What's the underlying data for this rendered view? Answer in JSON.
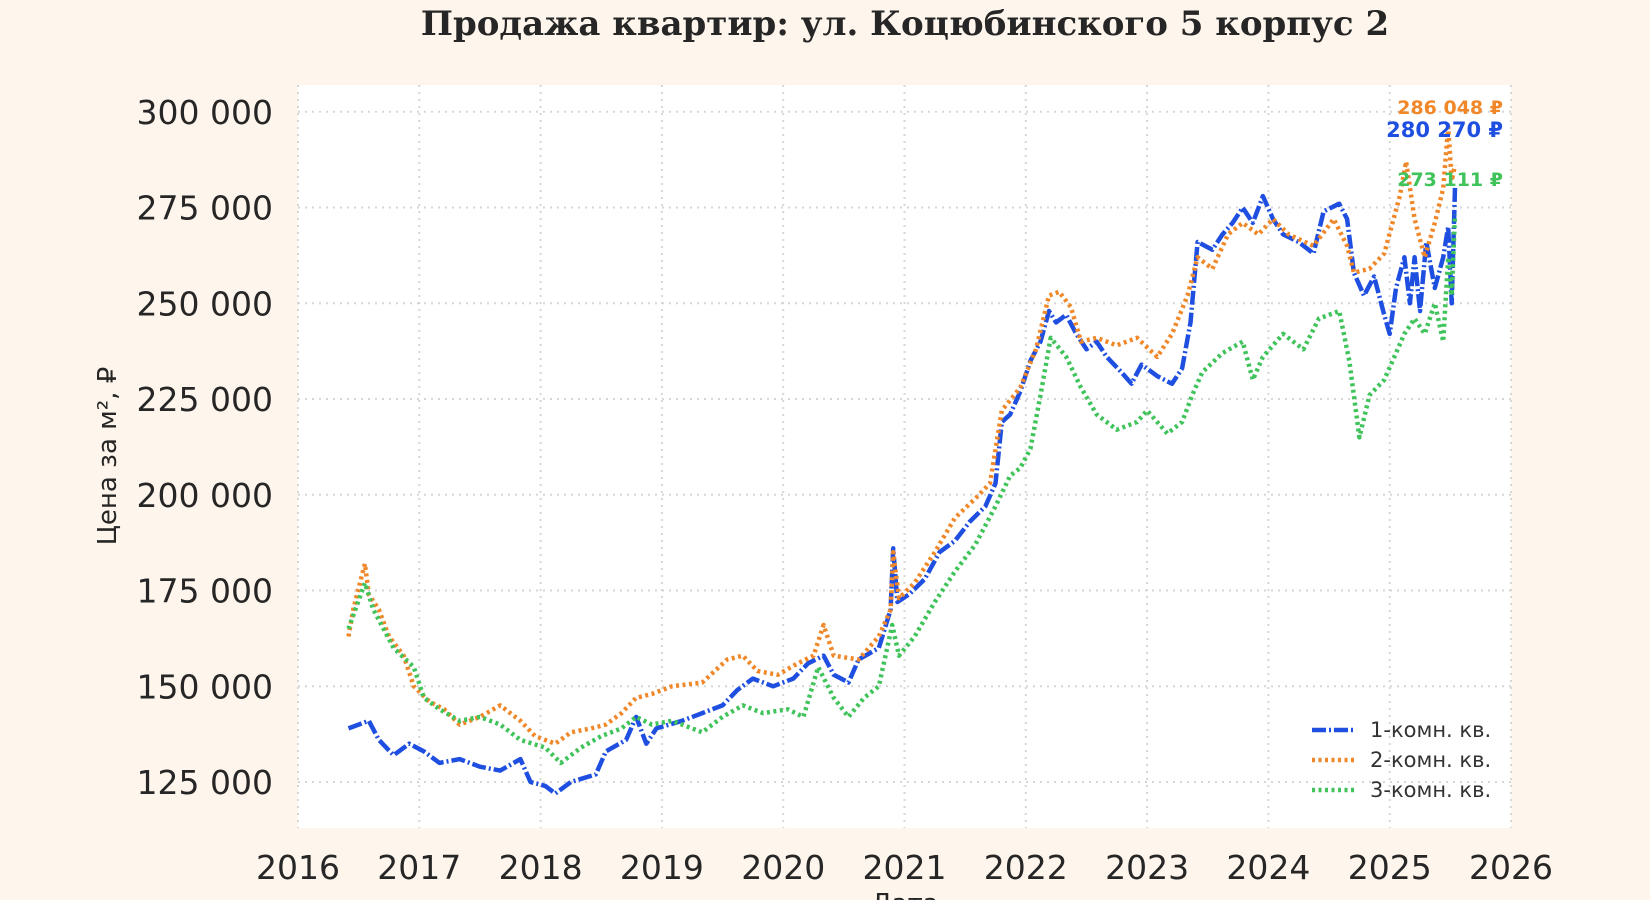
{
  "chart_data": {
    "type": "line",
    "title": "Продажа квартир: ул. Коцюбинского 5 корпус 2",
    "xlabel": "Дата",
    "ylabel": "Цена за м², ₽",
    "xlim": [
      "2016-01-01",
      "2026-01-01"
    ],
    "ylim": [
      113000,
      307000
    ],
    "x_ticks": [
      "2016",
      "2017",
      "2018",
      "2019",
      "2020",
      "2021",
      "2022",
      "2023",
      "2024",
      "2025",
      "2026"
    ],
    "y_ticks": [
      "125 000",
      "150 000",
      "175 000",
      "200 000",
      "225 000",
      "250 000",
      "275 000",
      "300 000"
    ],
    "y_tick_values": [
      125000,
      150000,
      175000,
      200000,
      225000,
      250000,
      275000,
      300000
    ],
    "grid": true,
    "legend_position": "bottom-right",
    "series": [
      {
        "name": "1-комн. кв.",
        "color": "#1f4fe0",
        "style": "dashdot",
        "end_label": "280 270 ₽",
        "points": [
          [
            "2016-06-01",
            139000
          ],
          [
            "2016-07-01",
            140000
          ],
          [
            "2016-08-01",
            141000
          ],
          [
            "2016-09-01",
            136000
          ],
          [
            "2016-10-15",
            132000
          ],
          [
            "2016-12-01",
            135000
          ],
          [
            "2017-01-15",
            133000
          ],
          [
            "2017-03-01",
            130000
          ],
          [
            "2017-05-01",
            131000
          ],
          [
            "2017-07-01",
            129000
          ],
          [
            "2017-09-01",
            128000
          ],
          [
            "2017-11-01",
            131000
          ],
          [
            "2017-12-01",
            125000
          ],
          [
            "2018-01-15",
            124000
          ],
          [
            "2018-02-15",
            122000
          ],
          [
            "2018-04-01",
            125000
          ],
          [
            "2018-06-15",
            127000
          ],
          [
            "2018-07-15",
            133000
          ],
          [
            "2018-09-15",
            136000
          ],
          [
            "2018-10-15",
            142000
          ],
          [
            "2018-11-15",
            135000
          ],
          [
            "2018-12-15",
            139000
          ],
          [
            "2019-03-01",
            141000
          ],
          [
            "2019-05-01",
            143000
          ],
          [
            "2019-07-01",
            145000
          ],
          [
            "2019-08-15",
            149000
          ],
          [
            "2019-10-01",
            152000
          ],
          [
            "2019-12-01",
            150000
          ],
          [
            "2020-02-01",
            152000
          ],
          [
            "2020-03-15",
            156000
          ],
          [
            "2020-05-01",
            158000
          ],
          [
            "2020-06-01",
            153000
          ],
          [
            "2020-07-15",
            151000
          ],
          [
            "2020-08-15",
            157000
          ],
          [
            "2020-10-15",
            160000
          ],
          [
            "2020-11-20",
            170000
          ],
          [
            "2020-11-28",
            186000
          ],
          [
            "2020-12-10",
            172000
          ],
          [
            "2021-01-15",
            174000
          ],
          [
            "2021-03-01",
            178000
          ],
          [
            "2021-04-15",
            185000
          ],
          [
            "2021-06-01",
            188000
          ],
          [
            "2021-07-15",
            193000
          ],
          [
            "2021-09-01",
            197000
          ],
          [
            "2021-10-01",
            203000
          ],
          [
            "2021-10-20",
            219000
          ],
          [
            "2021-11-15",
            221000
          ],
          [
            "2021-12-15",
            227000
          ],
          [
            "2022-01-15",
            235000
          ],
          [
            "2022-02-15",
            240000
          ],
          [
            "2022-03-10",
            248000
          ],
          [
            "2022-04-01",
            245000
          ],
          [
            "2022-05-01",
            247000
          ],
          [
            "2022-06-01",
            242000
          ],
          [
            "2022-07-01",
            238000
          ],
          [
            "2022-08-01",
            240000
          ],
          [
            "2022-09-01",
            236000
          ],
          [
            "2022-10-15",
            232000
          ],
          [
            "2022-11-15",
            229000
          ],
          [
            "2022-12-15",
            234000
          ],
          [
            "2023-02-01",
            231000
          ],
          [
            "2023-03-15",
            229000
          ],
          [
            "2023-04-15",
            233000
          ],
          [
            "2023-05-10",
            245000
          ],
          [
            "2023-06-01",
            266000
          ],
          [
            "2023-07-15",
            264000
          ],
          [
            "2023-08-15",
            268000
          ],
          [
            "2023-09-15",
            271000
          ],
          [
            "2023-10-15",
            275000
          ],
          [
            "2023-11-15",
            271000
          ],
          [
            "2023-12-15",
            278000
          ],
          [
            "2024-01-15",
            272000
          ],
          [
            "2024-02-15",
            268000
          ],
          [
            "2024-04-01",
            266000
          ],
          [
            "2024-05-15",
            263000
          ],
          [
            "2024-06-15",
            274000
          ],
          [
            "2024-08-01",
            276000
          ],
          [
            "2024-08-25",
            272000
          ],
          [
            "2024-09-15",
            258000
          ],
          [
            "2024-10-15",
            252000
          ],
          [
            "2024-11-15",
            257000
          ],
          [
            "2024-12-15",
            247000
          ],
          [
            "2025-01-01",
            242000
          ],
          [
            "2025-01-20",
            254000
          ],
          [
            "2025-02-15",
            262000
          ],
          [
            "2025-03-01",
            250000
          ],
          [
            "2025-03-15",
            262000
          ],
          [
            "2025-04-01",
            248000
          ],
          [
            "2025-04-20",
            266000
          ],
          [
            "2025-05-15",
            254000
          ],
          [
            "2025-06-10",
            262000
          ],
          [
            "2025-06-25",
            270000
          ],
          [
            "2025-07-05",
            250000
          ],
          [
            "2025-07-15",
            280270
          ]
        ]
      },
      {
        "name": "2-комн. кв.",
        "color": "#f0882a",
        "style": "dotted",
        "end_label": "286 048 ₽",
        "points": [
          [
            "2016-06-01",
            163000
          ],
          [
            "2016-06-15",
            170000
          ],
          [
            "2016-07-20",
            182000
          ],
          [
            "2016-08-01",
            174000
          ],
          [
            "2016-09-01",
            170000
          ],
          [
            "2016-10-01",
            163000
          ],
          [
            "2016-11-15",
            158000
          ],
          [
            "2016-12-15",
            150000
          ],
          [
            "2017-02-01",
            146000
          ],
          [
            "2017-03-15",
            144000
          ],
          [
            "2017-05-01",
            140000
          ],
          [
            "2017-07-01",
            142000
          ],
          [
            "2017-09-01",
            145000
          ],
          [
            "2017-11-01",
            141000
          ],
          [
            "2017-12-15",
            137000
          ],
          [
            "2018-02-15",
            135000
          ],
          [
            "2018-04-01",
            138000
          ],
          [
            "2018-06-01",
            139000
          ],
          [
            "2018-07-15",
            140000
          ],
          [
            "2018-09-01",
            143000
          ],
          [
            "2018-10-15",
            147000
          ],
          [
            "2018-12-01",
            148000
          ],
          [
            "2019-02-01",
            150000
          ],
          [
            "2019-05-01",
            151000
          ],
          [
            "2019-07-15",
            157000
          ],
          [
            "2019-09-01",
            158000
          ],
          [
            "2019-10-15",
            154000
          ],
          [
            "2019-12-15",
            153000
          ],
          [
            "2020-02-15",
            156000
          ],
          [
            "2020-04-01",
            158000
          ],
          [
            "2020-05-01",
            166000
          ],
          [
            "2020-06-01",
            158000
          ],
          [
            "2020-08-15",
            157000
          ],
          [
            "2020-10-15",
            163000
          ],
          [
            "2020-11-20",
            170000
          ],
          [
            "2020-11-28",
            185000
          ],
          [
            "2020-12-15",
            173000
          ],
          [
            "2021-02-01",
            177000
          ],
          [
            "2021-04-01",
            185000
          ],
          [
            "2021-06-01",
            194000
          ],
          [
            "2021-08-01",
            199000
          ],
          [
            "2021-09-15",
            203000
          ],
          [
            "2021-10-20",
            222000
          ],
          [
            "2021-12-15",
            228000
          ],
          [
            "2022-02-01",
            238000
          ],
          [
            "2022-03-10",
            252000
          ],
          [
            "2022-04-10",
            253000
          ],
          [
            "2022-05-15",
            249000
          ],
          [
            "2022-06-15",
            240000
          ],
          [
            "2022-08-01",
            241000
          ],
          [
            "2022-10-01",
            239000
          ],
          [
            "2022-12-01",
            241000
          ],
          [
            "2023-02-01",
            236000
          ],
          [
            "2023-03-15",
            242000
          ],
          [
            "2023-05-01",
            252000
          ],
          [
            "2023-06-01",
            262000
          ],
          [
            "2023-07-15",
            259000
          ],
          [
            "2023-09-01",
            268000
          ],
          [
            "2023-10-15",
            271000
          ],
          [
            "2023-12-01",
            268000
          ],
          [
            "2024-01-15",
            272000
          ],
          [
            "2024-03-01",
            268000
          ],
          [
            "2024-05-15",
            265000
          ],
          [
            "2024-07-15",
            272000
          ],
          [
            "2024-08-25",
            265000
          ],
          [
            "2024-09-15",
            258000
          ],
          [
            "2024-11-01",
            259000
          ],
          [
            "2024-12-15",
            263000
          ],
          [
            "2025-02-01",
            278000
          ],
          [
            "2025-02-20",
            287000
          ],
          [
            "2025-03-15",
            272000
          ],
          [
            "2025-04-15",
            262000
          ],
          [
            "2025-05-15",
            271000
          ],
          [
            "2025-06-10",
            280000
          ],
          [
            "2025-06-25",
            296000
          ],
          [
            "2025-07-05",
            282000
          ],
          [
            "2025-07-15",
            286048
          ]
        ]
      },
      {
        "name": "3-комн. кв.",
        "color": "#3fc35a",
        "style": "dotted",
        "end_label": "273 111 ₽",
        "points": [
          [
            "2016-06-01",
            165000
          ],
          [
            "2016-07-20",
            177000
          ],
          [
            "2016-08-15",
            170000
          ],
          [
            "2016-09-15",
            165000
          ],
          [
            "2016-10-15",
            160000
          ],
          [
            "2016-12-15",
            155000
          ],
          [
            "2017-01-15",
            147000
          ],
          [
            "2017-03-01",
            144000
          ],
          [
            "2017-05-01",
            141000
          ],
          [
            "2017-07-01",
            142000
          ],
          [
            "2017-09-01",
            140000
          ],
          [
            "2017-11-01",
            136000
          ],
          [
            "2018-01-15",
            134000
          ],
          [
            "2018-03-01",
            130000
          ],
          [
            "2018-05-01",
            134000
          ],
          [
            "2018-07-01",
            137000
          ],
          [
            "2018-09-01",
            139000
          ],
          [
            "2018-10-15",
            142000
          ],
          [
            "2018-12-01",
            140000
          ],
          [
            "2019-02-01",
            141000
          ],
          [
            "2019-05-01",
            138000
          ],
          [
            "2019-07-01",
            142000
          ],
          [
            "2019-09-01",
            145000
          ],
          [
            "2019-11-01",
            143000
          ],
          [
            "2020-01-15",
            144000
          ],
          [
            "2020-03-01",
            142000
          ],
          [
            "2020-04-15",
            155000
          ],
          [
            "2020-06-01",
            147000
          ],
          [
            "2020-07-15",
            142000
          ],
          [
            "2020-09-01",
            147000
          ],
          [
            "2020-10-15",
            150000
          ],
          [
            "2020-11-25",
            166000
          ],
          [
            "2020-12-15",
            158000
          ],
          [
            "2021-02-01",
            163000
          ],
          [
            "2021-04-01",
            172000
          ],
          [
            "2021-06-01",
            180000
          ],
          [
            "2021-08-01",
            187000
          ],
          [
            "2021-10-01",
            197000
          ],
          [
            "2021-11-15",
            205000
          ],
          [
            "2021-12-15",
            207000
          ],
          [
            "2022-01-15",
            212000
          ],
          [
            "2022-02-15",
            226000
          ],
          [
            "2022-03-15",
            241000
          ],
          [
            "2022-05-01",
            236000
          ],
          [
            "2022-06-15",
            228000
          ],
          [
            "2022-08-01",
            221000
          ],
          [
            "2022-10-01",
            217000
          ],
          [
            "2022-12-01",
            219000
          ],
          [
            "2023-01-01",
            222000
          ],
          [
            "2023-03-01",
            216000
          ],
          [
            "2023-04-15",
            219000
          ],
          [
            "2023-05-15",
            226000
          ],
          [
            "2023-06-15",
            232000
          ],
          [
            "2023-08-15",
            237000
          ],
          [
            "2023-10-15",
            240000
          ],
          [
            "2023-11-15",
            230000
          ],
          [
            "2023-12-15",
            236000
          ],
          [
            "2024-02-15",
            242000
          ],
          [
            "2024-04-15",
            238000
          ],
          [
            "2024-06-01",
            246000
          ],
          [
            "2024-08-01",
            248000
          ],
          [
            "2024-09-01",
            235000
          ],
          [
            "2024-10-01",
            215000
          ],
          [
            "2024-11-01",
            226000
          ],
          [
            "2024-12-15",
            230000
          ],
          [
            "2025-01-15",
            236000
          ],
          [
            "2025-02-15",
            242000
          ],
          [
            "2025-03-15",
            246000
          ],
          [
            "2025-04-15",
            242000
          ],
          [
            "2025-05-15",
            250000
          ],
          [
            "2025-06-10",
            240000
          ],
          [
            "2025-06-25",
            262000
          ],
          [
            "2025-07-05",
            252000
          ],
          [
            "2025-07-15",
            273111
          ]
        ]
      }
    ]
  }
}
